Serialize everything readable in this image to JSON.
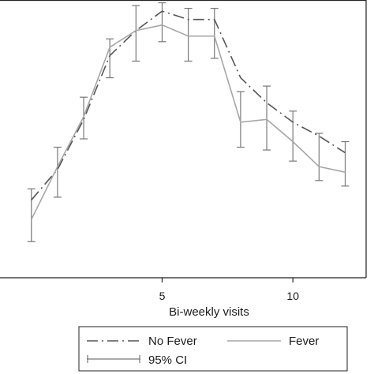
{
  "chart_data": {
    "type": "line",
    "xlabel": "Bi-weekly visits",
    "ylabel": "",
    "xlim": [
      -1.2,
      12.8
    ],
    "ylim": [
      0,
      100
    ],
    "x_ticks": [
      5,
      10
    ],
    "grid": false,
    "legend_position": "bottom",
    "series": [
      {
        "name": "No Fever",
        "style": "dash-dot",
        "color": "#555555",
        "x": [
          0,
          1,
          2,
          3,
          4,
          5,
          6,
          7,
          8,
          9,
          10,
          11,
          12
        ],
        "y": [
          28,
          39,
          57,
          80,
          89,
          96,
          93,
          93,
          72,
          63,
          56,
          51,
          45
        ]
      },
      {
        "name": "Fever",
        "style": "solid",
        "color": "#a6a6a6",
        "x": [
          0,
          1,
          2,
          3,
          4,
          5,
          6,
          7,
          8,
          9,
          10,
          11,
          12
        ],
        "y": [
          21,
          40,
          58,
          83,
          89,
          91,
          87,
          87,
          56,
          57,
          49,
          40,
          38
        ]
      }
    ],
    "ci": {
      "name": "95% CI",
      "color": "#777777",
      "x": [
        0,
        1,
        2,
        3,
        4,
        5,
        6,
        7,
        8,
        9,
        10,
        11,
        12
      ],
      "lower": [
        13,
        29,
        50,
        72,
        78,
        85,
        78,
        79,
        47,
        46,
        42,
        35,
        33
      ],
      "upper": [
        32,
        47,
        65,
        86,
        98,
        99,
        97,
        97,
        67,
        69,
        60,
        52,
        49
      ]
    },
    "legend": {
      "entries": [
        "No Fever",
        "Fever",
        "95% CI"
      ]
    }
  }
}
